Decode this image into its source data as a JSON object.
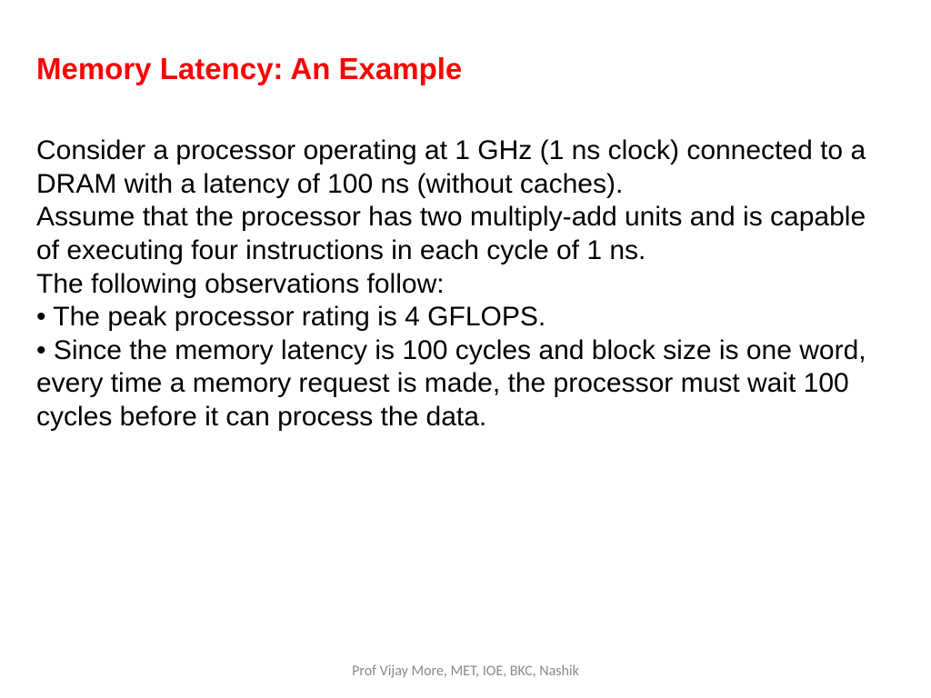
{
  "slide": {
    "title": "Memory Latency: An Example",
    "title_color": "#ff0000",
    "title_fontsize": 33,
    "title_weight": "bold",
    "body_color": "#000000",
    "body_fontsize": 30,
    "paragraphs": [
      "Consider a processor operating at 1 GHz (1 ns clock) connected to a DRAM with a latency of 100 ns (without caches).",
      "Assume that the processor has two multiply-add units and is capable of executing four instructions in each cycle of 1 ns.",
      "The following observations follow:",
      "• The peak processor rating is 4 GFLOPS.",
      "• Since the memory latency is 100 cycles and block size is one word, every time a memory request is made, the processor must wait 100 cycles before it can process the data."
    ],
    "footer": "Prof Vijay More, MET, IOE, BKC, Nashik",
    "footer_color": "#8a8a8a",
    "footer_fontsize": 16,
    "background_color": "#ffffff"
  }
}
